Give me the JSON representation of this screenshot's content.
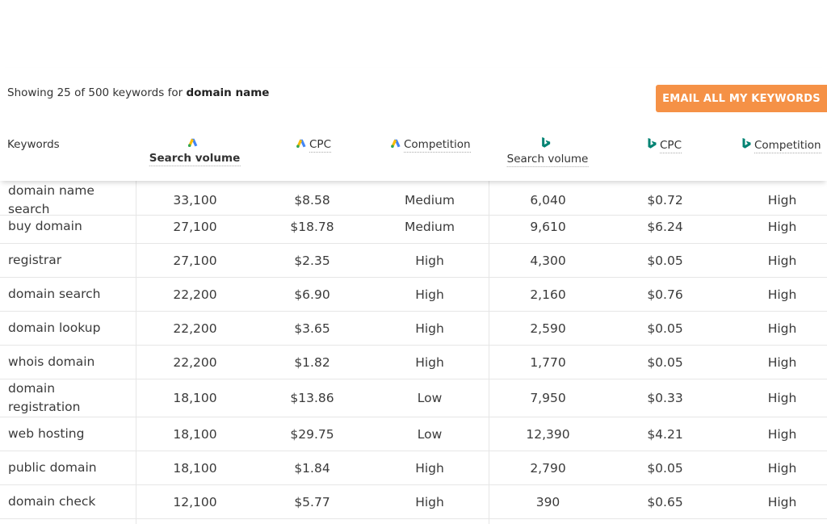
{
  "summary": {
    "prefix": "Showing 25 of 500 keywords for",
    "query": "domain name"
  },
  "email_button": {
    "label": "EMAIL ALL MY KEYWORDS"
  },
  "colors": {
    "accent": "#f59146",
    "google_blue": "#4285f4",
    "google_yellow": "#fbbc04",
    "bing_teal": "#008373"
  },
  "columns": {
    "keywords": "Keywords",
    "google_volume": "Search volume",
    "google_cpc": "CPC",
    "google_competition": "Competition",
    "bing_volume": "Search volume",
    "bing_cpc": "CPC",
    "bing_competition": "Competition"
  },
  "icons": {
    "google": "google-ads-icon",
    "bing": "bing-icon"
  },
  "rows": [
    {
      "keyword": "domain name search",
      "g_volume": "33,100",
      "g_cpc": "$8.58",
      "g_comp": "Medium",
      "b_volume": "6,040",
      "b_cpc": "$0.72",
      "b_comp": "High"
    },
    {
      "keyword": "buy domain",
      "g_volume": "27,100",
      "g_cpc": "$18.78",
      "g_comp": "Medium",
      "b_volume": "9,610",
      "b_cpc": "$6.24",
      "b_comp": "High"
    },
    {
      "keyword": "registrar",
      "g_volume": "27,100",
      "g_cpc": "$2.35",
      "g_comp": "High",
      "b_volume": "4,300",
      "b_cpc": "$0.05",
      "b_comp": "High"
    },
    {
      "keyword": "domain search",
      "g_volume": "22,200",
      "g_cpc": "$6.90",
      "g_comp": "High",
      "b_volume": "2,160",
      "b_cpc": "$0.76",
      "b_comp": "High"
    },
    {
      "keyword": "domain lookup",
      "g_volume": "22,200",
      "g_cpc": "$3.65",
      "g_comp": "High",
      "b_volume": "2,590",
      "b_cpc": "$0.05",
      "b_comp": "High"
    },
    {
      "keyword": "whois domain",
      "g_volume": "22,200",
      "g_cpc": "$1.82",
      "g_comp": "High",
      "b_volume": "1,770",
      "b_cpc": "$0.05",
      "b_comp": "High"
    },
    {
      "keyword": "domain registration",
      "g_volume": "18,100",
      "g_cpc": "$13.86",
      "g_comp": "Low",
      "b_volume": "7,950",
      "b_cpc": "$0.33",
      "b_comp": "High"
    },
    {
      "keyword": "web hosting",
      "g_volume": "18,100",
      "g_cpc": "$29.75",
      "g_comp": "Low",
      "b_volume": "12,390",
      "b_cpc": "$4.21",
      "b_comp": "High"
    },
    {
      "keyword": "public domain",
      "g_volume": "18,100",
      "g_cpc": "$1.84",
      "g_comp": "High",
      "b_volume": "2,790",
      "b_cpc": "$0.05",
      "b_comp": "High"
    },
    {
      "keyword": "domain check",
      "g_volume": "12,100",
      "g_cpc": "$5.77",
      "g_comp": "High",
      "b_volume": "390",
      "b_cpc": "$0.65",
      "b_comp": "High"
    }
  ]
}
